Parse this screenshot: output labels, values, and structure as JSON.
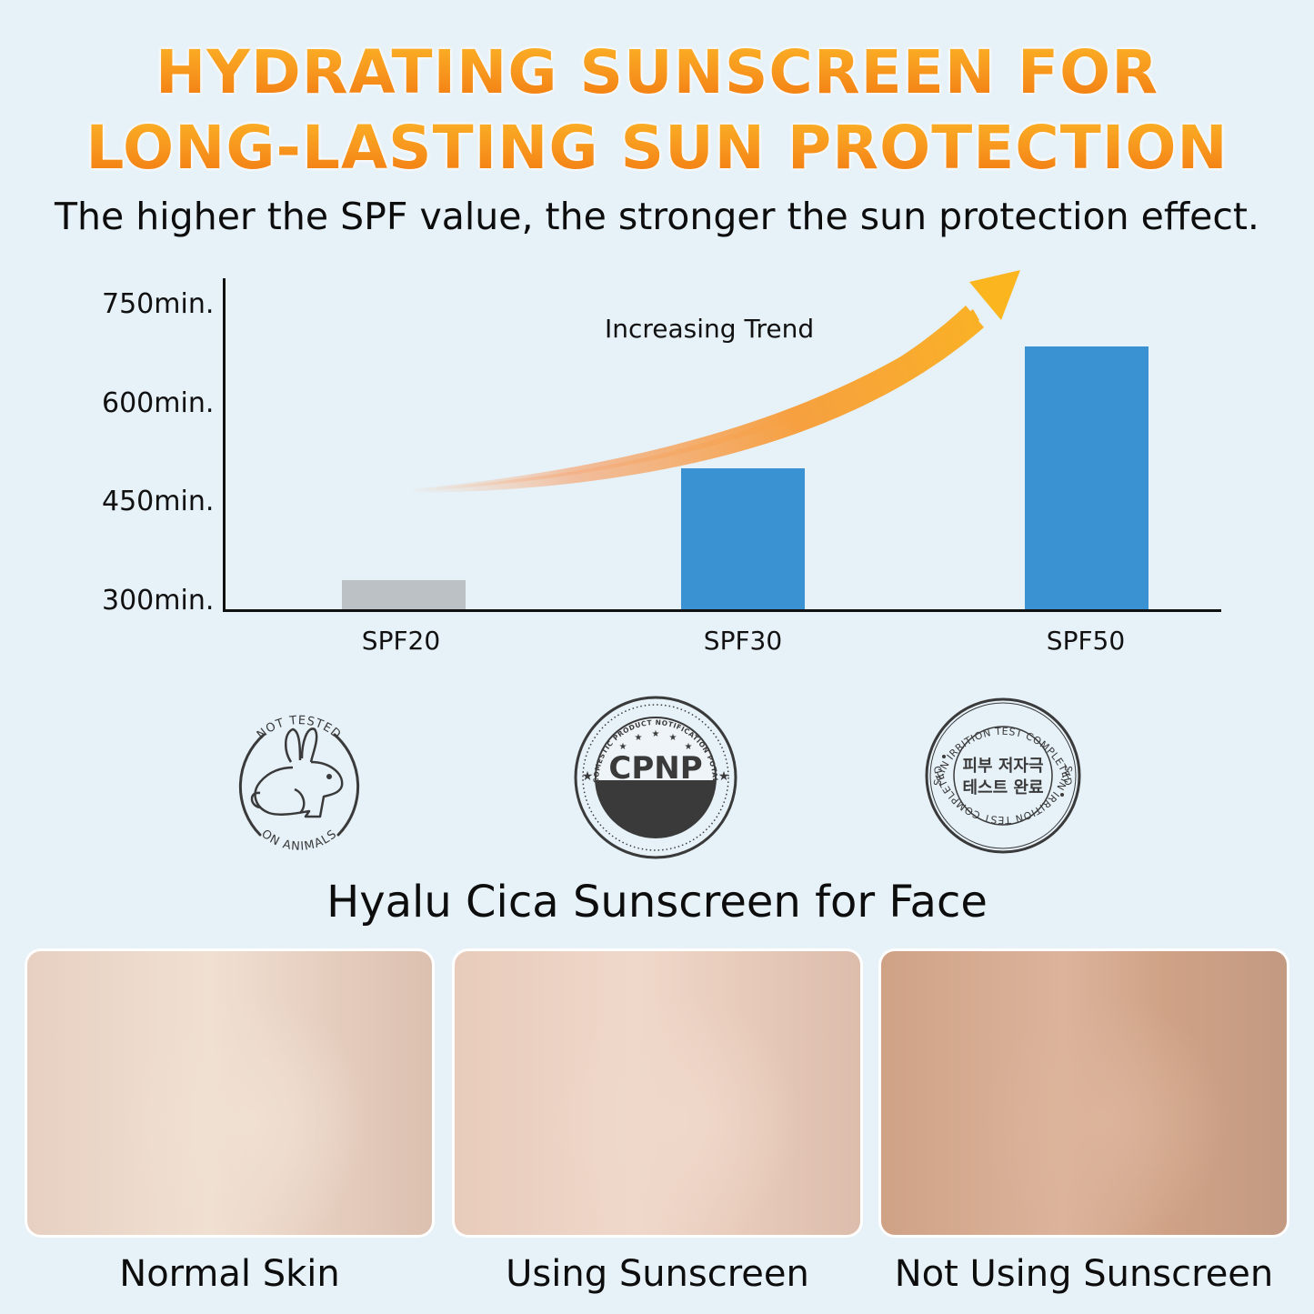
{
  "header": {
    "headline_line1": "HYDRATING SUNSCREEN FOR",
    "headline_line2": "LONG-LASTING SUN PROTECTION",
    "subtitle": "The higher the SPF value, the stronger the sun protection effect."
  },
  "chart": {
    "y_ticks": [
      "750min.",
      "600min.",
      "450min.",
      "300min."
    ],
    "x_ticks": [
      "SPF20",
      "SPF30",
      "SPF50"
    ],
    "trend_label": "Increasing Trend"
  },
  "chart_data": {
    "type": "bar",
    "title": "The higher the SPF value, the stronger the sun protection effect.",
    "categories": [
      "SPF20",
      "SPF30",
      "SPF50"
    ],
    "values": [
      345,
      510,
      690
    ],
    "unit": "min.",
    "xlabel": "",
    "ylabel": "",
    "ylim": [
      300,
      750
    ],
    "yticks": [
      300,
      450,
      600,
      750
    ],
    "ytick_labels": [
      "300min.",
      "450min.",
      "600min.",
      "750min."
    ],
    "colors": [
      "#bbc1c4",
      "#3a92d2",
      "#3a92d2"
    ],
    "grid": false,
    "legend": null,
    "annotations": [
      {
        "text": "Increasing Trend",
        "type": "curved-arrow",
        "direction": "up-right",
        "color": "#f7941d"
      }
    ]
  },
  "badges": [
    {
      "name": "not-tested-on-animals",
      "top_text": "NOT TESTED",
      "bottom_text": "ON ANIMALS"
    },
    {
      "name": "cpnp",
      "ring_text": "COMESTIC PRODUCT NOTIFICATION POTAL",
      "center_text": "CPNP"
    },
    {
      "name": "skin-irritation-test",
      "ring_text": "SKIN IRRITION TEST COMPLETED",
      "center_line1": "피부 저자극",
      "center_line2": "테스트 완료"
    }
  ],
  "product": {
    "title": "Hyalu Cica Sunscreen for Face"
  },
  "comparison": [
    {
      "label": "Normal Skin",
      "tone_a": "#e7d0c1",
      "tone_b": "#f0e0d2",
      "tone_c": "#dcc0b0"
    },
    {
      "label": "Using Sunscreen",
      "tone_a": "#e8cbbb",
      "tone_b": "#efd8ca",
      "tone_c": "#dcbdac"
    },
    {
      "label": "Not Using Sunscreen",
      "tone_a": "#cfa286",
      "tone_b": "#dcb49b",
      "tone_c": "#c39a82"
    }
  ],
  "colors": {
    "background": "#e6f1f8",
    "headline_orange": "#f7941d",
    "bar_blue": "#3a92d2",
    "bar_gray": "#bbc1c4",
    "badge_dark": "#3a3a3a"
  }
}
